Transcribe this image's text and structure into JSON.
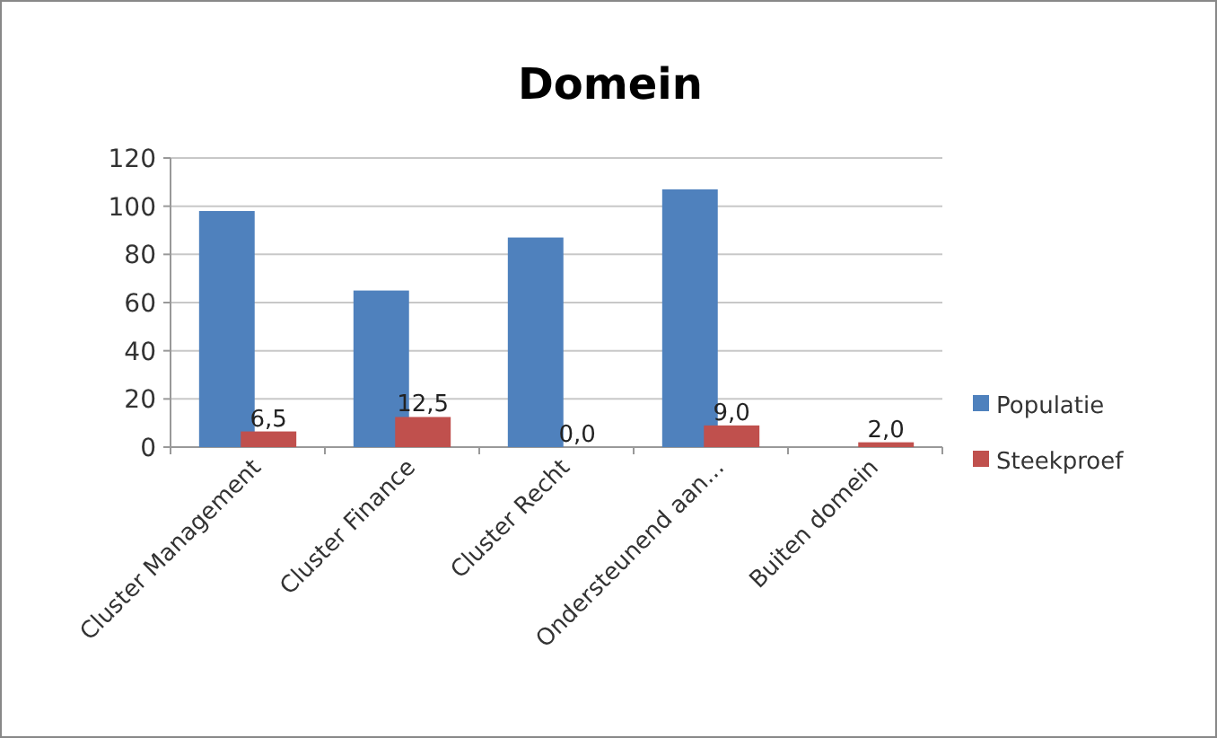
{
  "chart_data": {
    "type": "bar",
    "title": "Domein",
    "categories": [
      "Cluster Management",
      "Cluster Finance",
      "Cluster Recht",
      "Ondersteunend aan...",
      "Buiten domein"
    ],
    "series": [
      {
        "name": "Populatie",
        "color": "#4f81bd",
        "values": [
          98,
          65,
          87,
          107,
          0
        ]
      },
      {
        "name": "Steekproef",
        "color": "#c0504d",
        "values": [
          6.5,
          12.5,
          0,
          9,
          2
        ],
        "value_labels": [
          "6,5",
          "12,5",
          "0,0",
          "9,0",
          "2,0"
        ]
      }
    ],
    "ylim": [
      0,
      120
    ],
    "yticks": [
      0,
      20,
      40,
      60,
      80,
      100,
      120
    ],
    "grid": "y",
    "legend": "right"
  }
}
